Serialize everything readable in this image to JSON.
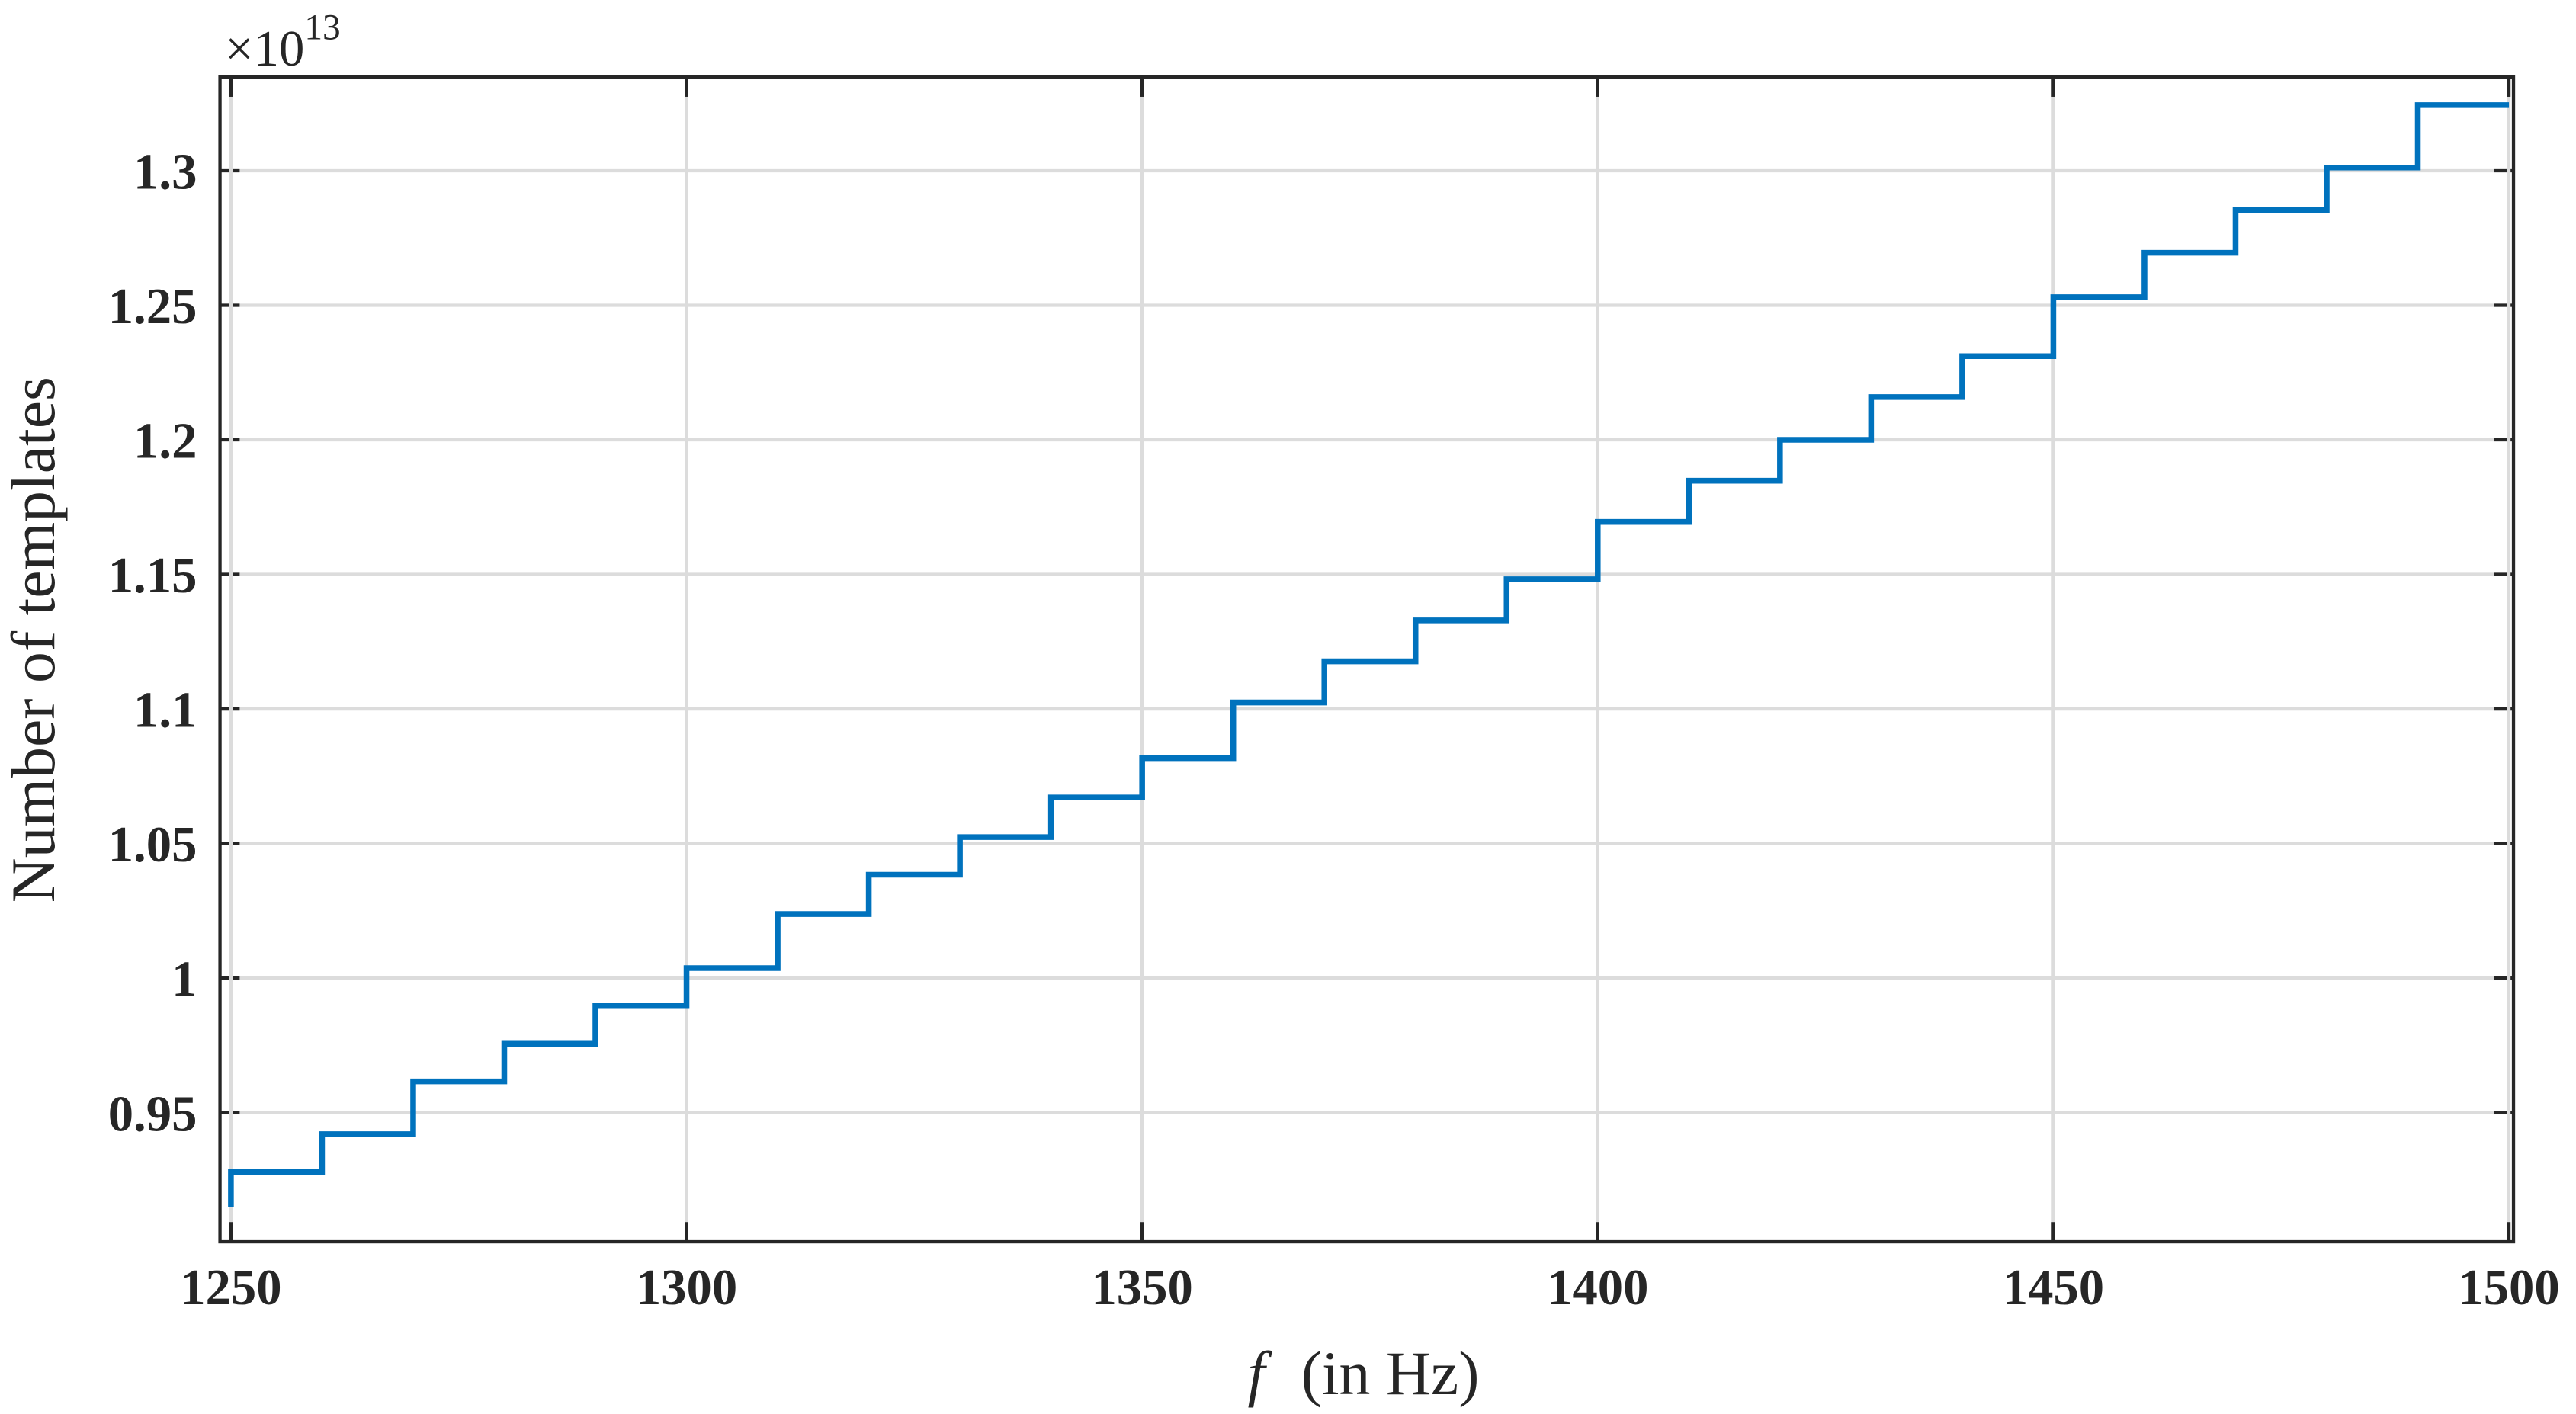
{
  "chart_data": {
    "type": "line",
    "step": "post",
    "xlabel_var": "f",
    "xlabel": "(in Hz)",
    "ylabel": "Number of templates",
    "multiplier": {
      "base": "×10",
      "exponent": "13"
    },
    "x": [
      1250,
      1250,
      1260,
      1270,
      1280,
      1290,
      1300,
      1310,
      1320,
      1330,
      1340,
      1350,
      1360,
      1370,
      1380,
      1390,
      1400,
      1410,
      1420,
      1430,
      1440,
      1450,
      1460,
      1470,
      1480,
      1490,
      1500
    ],
    "series": [
      {
        "name": "templates",
        "color": "#0072bd",
        "values": [
          0.915,
          0.928,
          0.942,
          0.9616,
          0.9756,
          0.9896,
          1.0037,
          1.0238,
          1.0384,
          1.0524,
          1.0671,
          1.0817,
          1.1024,
          1.1177,
          1.1329,
          1.1482,
          1.1695,
          1.1848,
          1.2,
          1.2159,
          1.2311,
          1.253,
          1.2695,
          1.2854,
          1.3012,
          1.3244,
          1.3244
        ]
      }
    ],
    "xlim": [
      1248.8,
      1500.5
    ],
    "ylim": [
      0.902,
      1.3348
    ],
    "xticks": [
      1250,
      1300,
      1350,
      1400,
      1450,
      1500
    ],
    "yticks": [
      0.95,
      1,
      1.05,
      1.1,
      1.15,
      1.2,
      1.25,
      1.3
    ],
    "grid": true
  }
}
